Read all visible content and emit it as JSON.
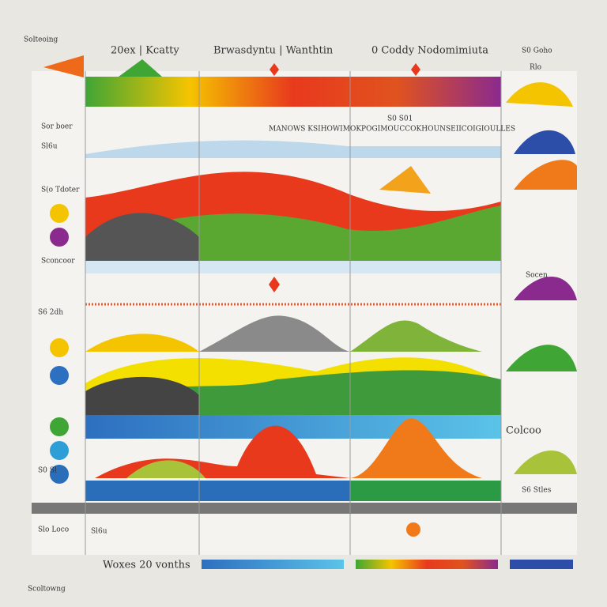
{
  "header": {
    "corner": "Solteoing",
    "columns": [
      "20ex | Kcatty",
      "Brwasdyntu | Wanthtin",
      "0 Coddy Nodomimiuta",
      "S0 Goho"
    ]
  },
  "left_labels": [
    "Sor boer",
    "Sl6u",
    "S(o Tdoter",
    "Sconcoor",
    "S6 2dh",
    "S0 Sl",
    "Slo Loco"
  ],
  "right_labels": [
    "Rlo",
    "Socen",
    "Colcoo",
    "S6 Stles"
  ],
  "middle": {
    "caption": "S0 S01",
    "banner": "MANOWS KSIHOWIMOKPOGIMOUCCOKHOUNSEIICOIGIOULLES"
  },
  "footer": {
    "note": "Sl6u",
    "caption": "Woxes 20 vonths",
    "left": "Scoltowng"
  }
}
